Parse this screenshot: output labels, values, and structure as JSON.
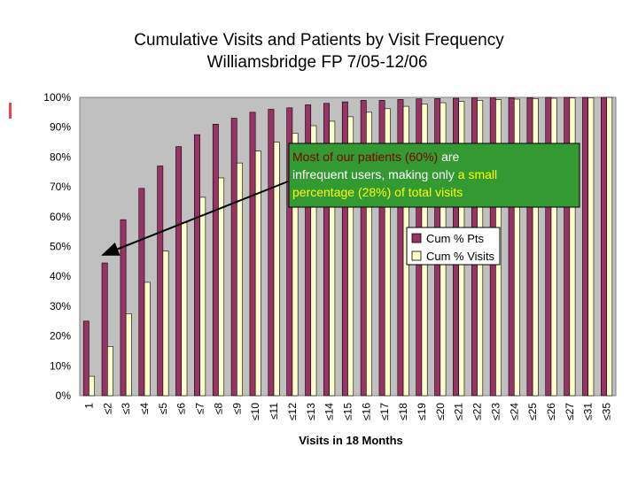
{
  "chart_data": {
    "type": "bar",
    "title": "Cumulative Visits and Patients by Visit Frequency",
    "subtitle": "Williamsbridge FP  7/05-12/06",
    "xlabel": "Visits in 18 Months",
    "ylabel": "",
    "ylim": [
      0,
      100
    ],
    "yticks": [
      "0%",
      "10%",
      "20%",
      "30%",
      "40%",
      "50%",
      "60%",
      "70%",
      "80%",
      "90%",
      "100%"
    ],
    "grid": false,
    "legend_position": "right",
    "categories": [
      "1",
      "≤2",
      "≤3",
      "≤4",
      "≤5",
      "≤6",
      "≤7",
      "≤8",
      "≤9",
      "≤10",
      "≤11",
      "≤12",
      "≤13",
      "≤14",
      "≤15",
      "≤16",
      "≤17",
      "≤18",
      "≤19",
      "≤20",
      "≤21",
      "≤22",
      "≤23",
      "≤24",
      "≤25",
      "≤26",
      "≤27",
      "≤31",
      "≤35"
    ],
    "series": [
      {
        "name": "Cum % Pts",
        "color": "#993366",
        "values": [
          25,
          44.5,
          59,
          69.5,
          77,
          83.5,
          87.5,
          91,
          93,
          95,
          96,
          96.5,
          97.5,
          98,
          98.5,
          99,
          99,
          99.3,
          99.5,
          99.6,
          99.7,
          99.8,
          99.8,
          99.9,
          99.9,
          100,
          100,
          100,
          100
        ]
      },
      {
        "name": "Cum % Visits",
        "color": "#ffffcc",
        "values": [
          6.5,
          16.5,
          27.5,
          38,
          48.5,
          58,
          66.5,
          73,
          78,
          82,
          85,
          88,
          90.5,
          92,
          93.5,
          95,
          96.2,
          97,
          97.8,
          98.2,
          98.6,
          99,
          99.2,
          99.4,
          99.6,
          99.7,
          99.8,
          99.9,
          100
        ]
      }
    ],
    "annotation": {
      "text": "Most of our patients (60%) are infrequent users, making only a small percentage (28%) of total visits",
      "lines": [
        [
          {
            "t": "Most of our patients (60%) ",
            "c": "dark-red"
          },
          {
            "t": "are",
            "c": "white"
          }
        ],
        [
          {
            "t": "infrequent users, making only ",
            "c": "white"
          },
          {
            "t": "a small",
            "c": "yellow"
          }
        ],
        [
          {
            "t": "percentage (28%) of total visits",
            "c": "yellow"
          }
        ]
      ],
      "box_color": "#339933",
      "text_colors": {
        "dark-red": "#800000",
        "white": "#ffffff",
        "yellow": "#ffff00"
      }
    },
    "colors": {
      "plot_background": "#c0c0c0",
      "pts_bar": "#993366",
      "visits_bar": "#ffffcc",
      "annotation_box": "#339933"
    }
  }
}
